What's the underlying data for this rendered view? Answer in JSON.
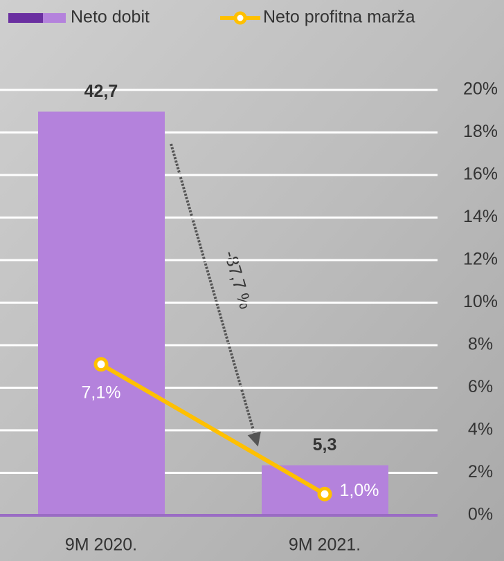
{
  "chart_data": {
    "type": "combo",
    "categories": [
      "9M 2020.",
      "9M 2021."
    ],
    "series": [
      {
        "name": "Neto dobit",
        "type": "bar",
        "color": "#b482dc",
        "values": [
          42.7,
          5.3
        ],
        "value_labels": [
          "42,7",
          "5,3"
        ]
      },
      {
        "name": "Neto profitna marža",
        "type": "line",
        "axis": "y2",
        "color": "#ffc000",
        "values": [
          7.1,
          1.0
        ],
        "value_labels": [
          "7,1%",
          "1,0%"
        ]
      }
    ],
    "ylim": [
      0,
      45
    ],
    "y2lim": [
      0,
      20
    ],
    "y2ticks": [
      {
        "value": 0,
        "label": "0%"
      },
      {
        "value": 2,
        "label": "2%"
      },
      {
        "value": 4,
        "label": "4%"
      },
      {
        "value": 6,
        "label": "6%"
      },
      {
        "value": 8,
        "label": "8%"
      },
      {
        "value": 10,
        "label": "10%"
      },
      {
        "value": 12,
        "label": "12%"
      },
      {
        "value": 14,
        "label": "14%"
      },
      {
        "value": 16,
        "label": "16%"
      },
      {
        "value": 18,
        "label": "18%"
      },
      {
        "value": 20,
        "label": "20%"
      }
    ],
    "grid": true,
    "annotation": "-87,7 %"
  }
}
